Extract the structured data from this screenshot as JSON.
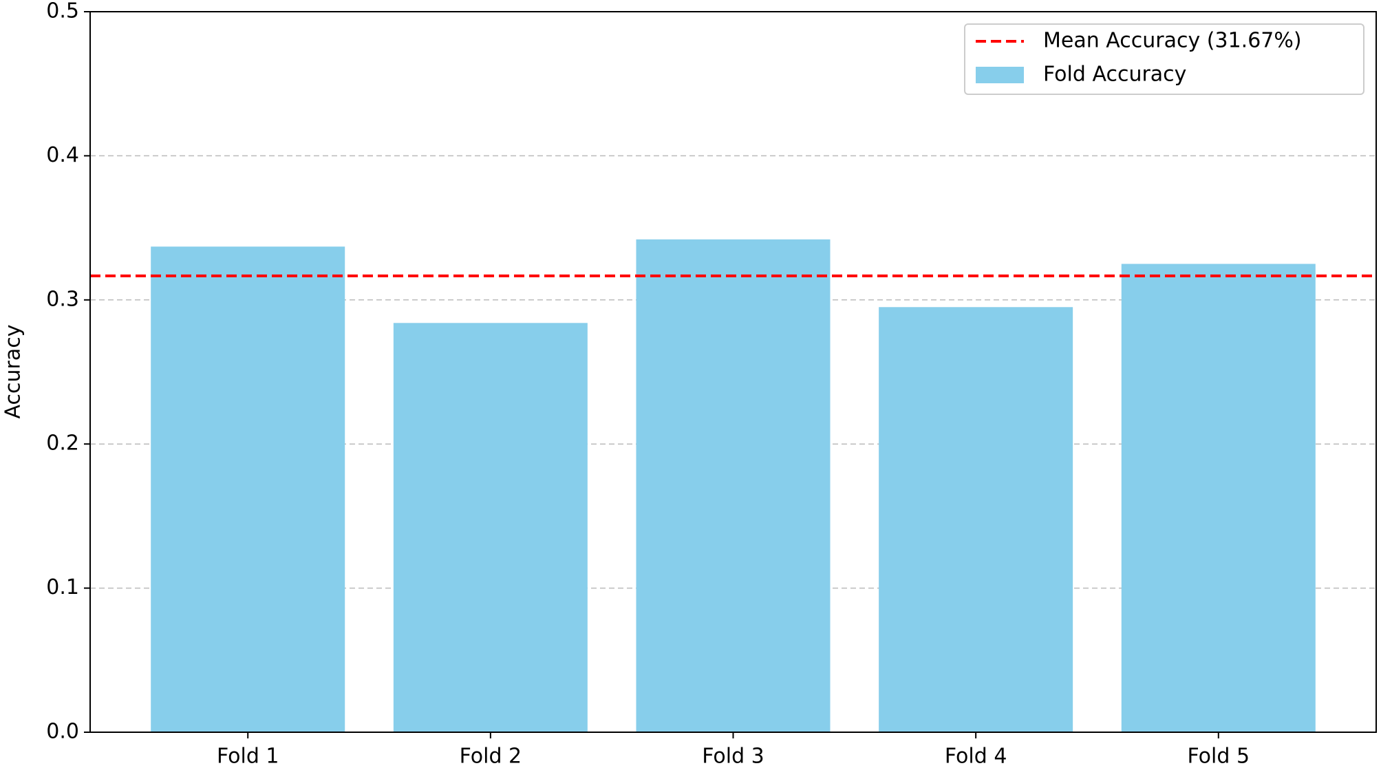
{
  "chart_data": {
    "type": "bar",
    "y_label": "Accuracy",
    "categories": [
      "Fold 1",
      "Fold 2",
      "Fold 3",
      "Fold 4",
      "Fold 5"
    ],
    "series": [
      {
        "name": "Fold Accuracy",
        "color": "#87ceeb",
        "values": [
          0.337,
          0.284,
          0.342,
          0.295,
          0.325
        ]
      }
    ],
    "mean_line": {
      "value": 0.3167,
      "label": "Mean Accuracy (31.67%)",
      "color": "#ff0000"
    },
    "ylim": [
      0,
      0.5
    ],
    "yticks": [
      {
        "value": 0,
        "label": "0.0"
      },
      0.1,
      0.2,
      0.3,
      0.4,
      0.5
    ],
    "grid": true,
    "legend": "upper right"
  }
}
